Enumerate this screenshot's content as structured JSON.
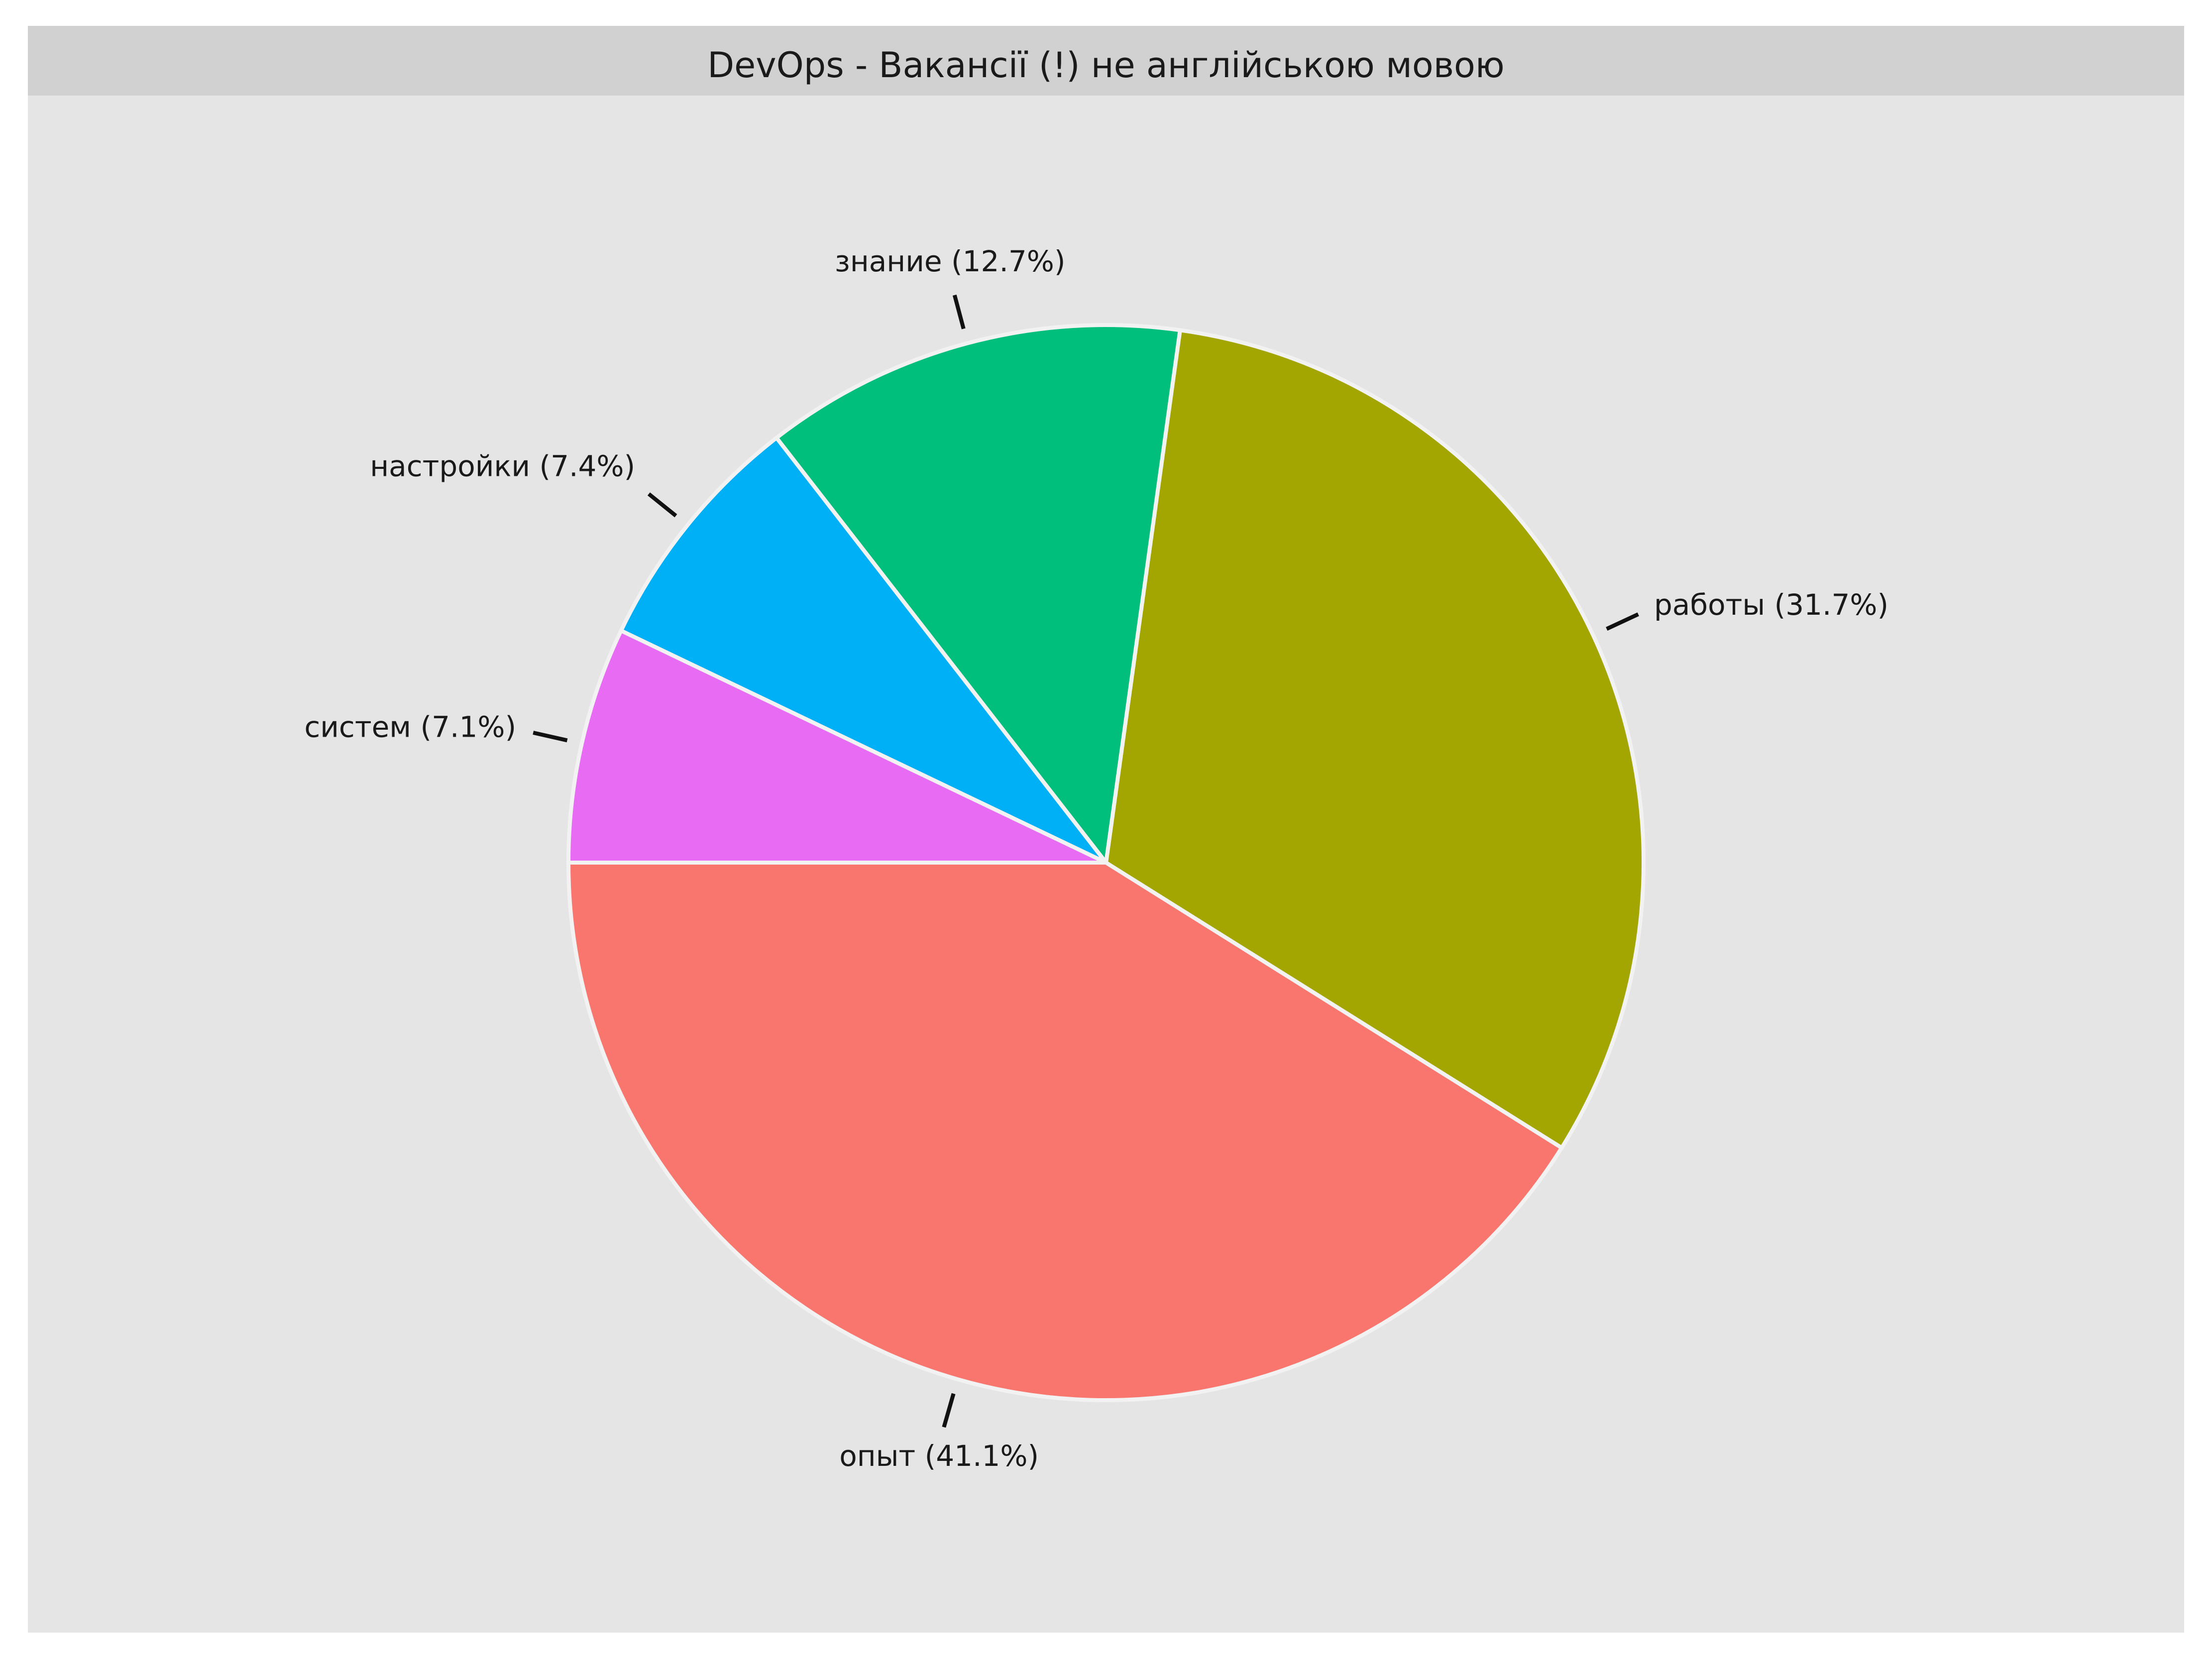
{
  "chart_data": {
    "type": "pie",
    "title": "DevOps - Вакансії (!) не англійською мовою",
    "slices": [
      {
        "label": "опыт (41.1%)",
        "category": "опыт",
        "value": 41.1,
        "color": "#F8766D"
      },
      {
        "label": "работы (31.7%)",
        "category": "работы",
        "value": 31.7,
        "color": "#A3A500"
      },
      {
        "label": "знание (12.7%)",
        "category": "знание",
        "value": 12.7,
        "color": "#00BF7D"
      },
      {
        "label": "настройки (7.4%)",
        "category": "настройки",
        "value": 7.4,
        "color": "#00B0F6"
      },
      {
        "label": "систем (7.1%)",
        "category": "систем",
        "value": 7.1,
        "color": "#E76BF3"
      }
    ],
    "start_angle_deg": 180,
    "direction": "counterclockwise",
    "legend": "none",
    "panel_background": "#E5E5E5",
    "title_strip_background": "#D1D1D1",
    "slice_border_color": "#F2F2F2"
  }
}
